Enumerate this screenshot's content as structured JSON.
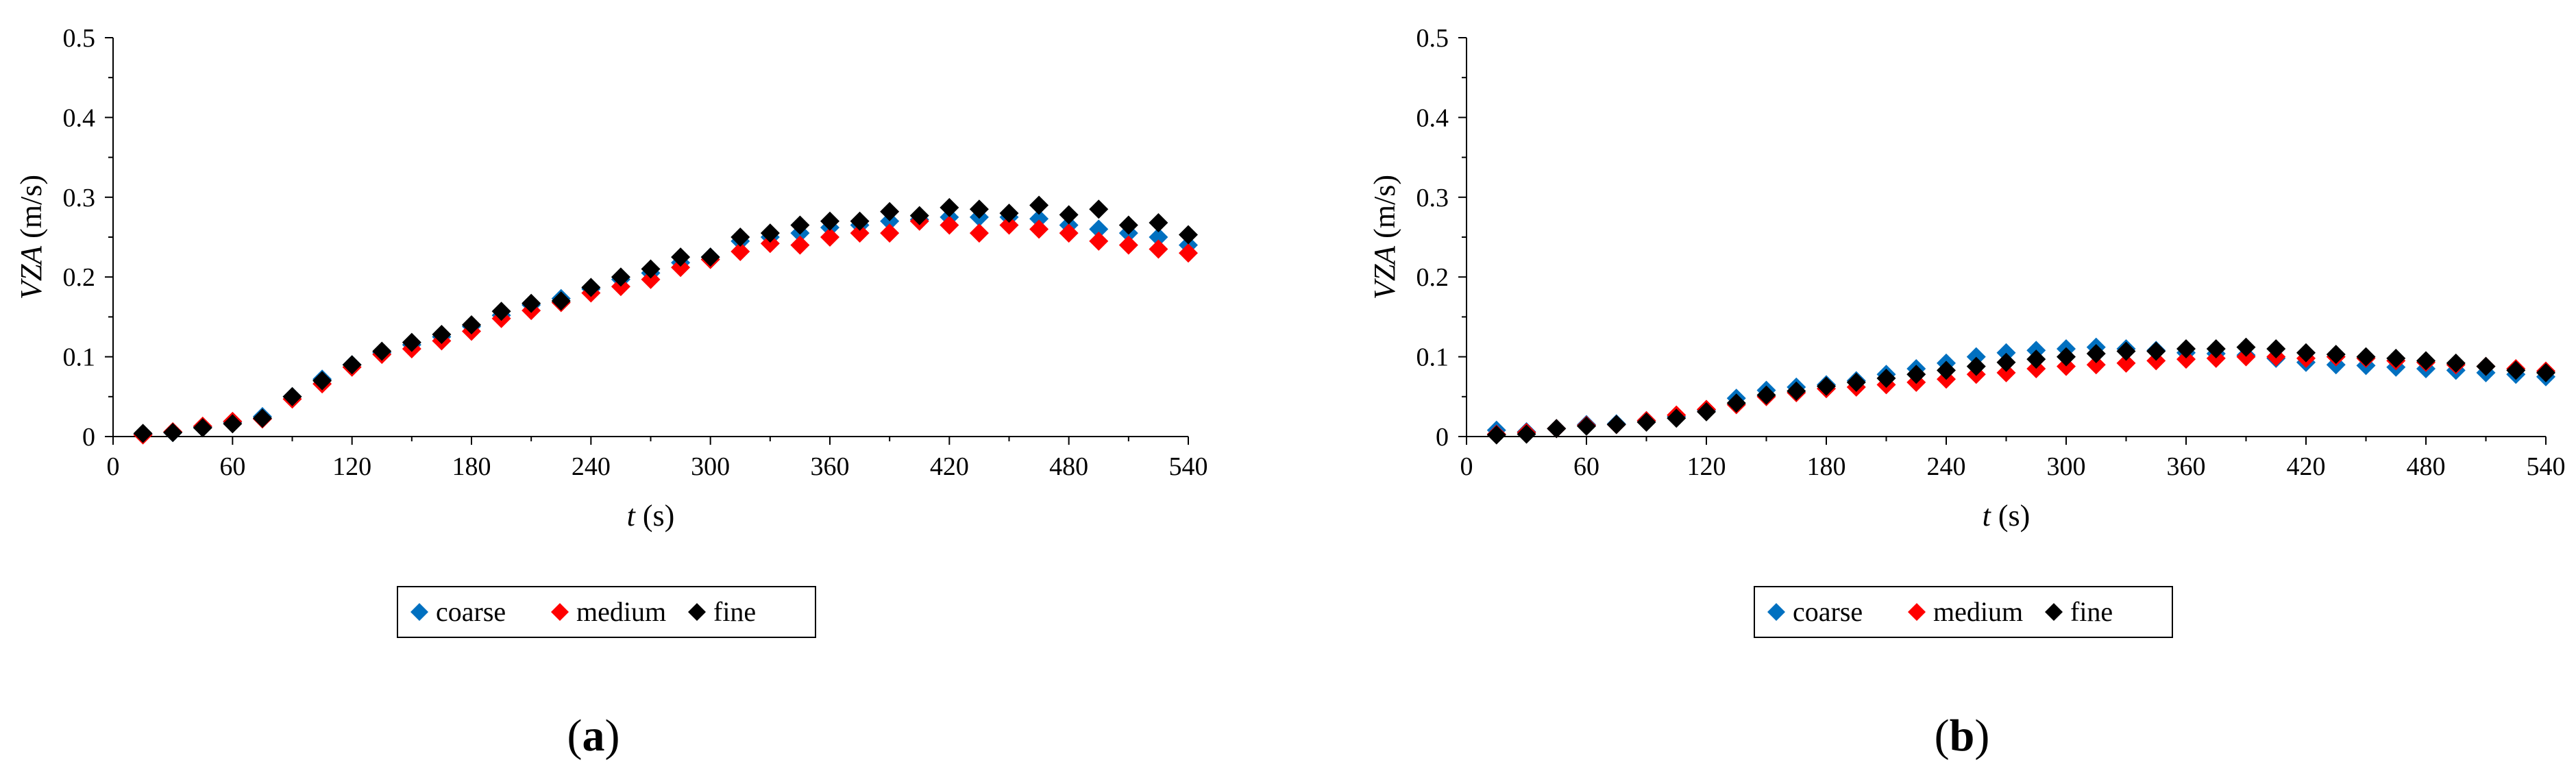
{
  "colors": {
    "coarse": "#0070C0",
    "medium": "#FF0000",
    "fine": "#000000"
  },
  "chart_data": [
    {
      "type": "scatter",
      "panel_label": {
        "open": "(",
        "letter": "a",
        "close": ")"
      },
      "ylabel": {
        "var": "VZA",
        "unit": " (m/s)"
      },
      "xlabel": {
        "var": "t",
        "unit": " (s)"
      },
      "xlim": [
        0,
        540
      ],
      "ylim": [
        0,
        0.5
      ],
      "xticks": [
        0,
        60,
        120,
        180,
        240,
        300,
        360,
        420,
        480,
        540
      ],
      "yticks": [
        0,
        0.1,
        0.2,
        0.3,
        0.4,
        0.5
      ],
      "xtick_labels": [
        "0",
        "60",
        "120",
        "180",
        "240",
        "300",
        "360",
        "420",
        "480",
        "540"
      ],
      "ytick_labels": [
        "0",
        "0.1",
        "0.2",
        "0.3",
        "0.4",
        "0.5"
      ],
      "x": [
        15,
        30,
        45,
        60,
        75,
        90,
        105,
        120,
        135,
        150,
        165,
        180,
        195,
        210,
        225,
        240,
        255,
        270,
        285,
        300,
        315,
        330,
        345,
        360,
        375,
        390,
        405,
        420,
        435,
        450,
        465,
        480,
        495,
        510,
        525,
        540
      ],
      "series": [
        {
          "name": "coarse",
          "values": [
            0.003,
            0.005,
            0.012,
            0.018,
            0.025,
            0.05,
            0.072,
            0.09,
            0.105,
            0.115,
            0.125,
            0.138,
            0.152,
            0.165,
            0.173,
            0.185,
            0.197,
            0.205,
            0.218,
            0.225,
            0.245,
            0.25,
            0.255,
            0.262,
            0.265,
            0.27,
            0.272,
            0.275,
            0.275,
            0.275,
            0.273,
            0.265,
            0.26,
            0.255,
            0.25,
            0.24
          ]
        },
        {
          "name": "medium",
          "values": [
            0.002,
            0.006,
            0.013,
            0.019,
            0.022,
            0.047,
            0.066,
            0.087,
            0.103,
            0.11,
            0.12,
            0.132,
            0.148,
            0.158,
            0.168,
            0.18,
            0.188,
            0.197,
            0.212,
            0.222,
            0.232,
            0.242,
            0.24,
            0.25,
            0.255,
            0.255,
            0.27,
            0.265,
            0.255,
            0.265,
            0.26,
            0.255,
            0.245,
            0.24,
            0.235,
            0.23
          ]
        },
        {
          "name": "fine",
          "values": [
            0.004,
            0.005,
            0.011,
            0.016,
            0.023,
            0.05,
            0.07,
            0.09,
            0.107,
            0.118,
            0.128,
            0.14,
            0.157,
            0.167,
            0.17,
            0.187,
            0.2,
            0.21,
            0.225,
            0.225,
            0.25,
            0.255,
            0.265,
            0.27,
            0.27,
            0.282,
            0.277,
            0.287,
            0.285,
            0.28,
            0.29,
            0.278,
            0.285,
            0.265,
            0.268,
            0.253
          ]
        }
      ],
      "legend": {
        "entries": [
          "coarse",
          "medium",
          "fine"
        ],
        "placement": "bottom-center"
      }
    },
    {
      "type": "scatter",
      "panel_label": {
        "open": "(",
        "letter": "b",
        "close": ")"
      },
      "ylabel": {
        "var": "VZA",
        "unit": " (m/s)"
      },
      "xlabel": {
        "var": "t",
        "unit": " (s)"
      },
      "xlim": [
        0,
        540
      ],
      "ylim": [
        0,
        0.5
      ],
      "xticks": [
        0,
        60,
        120,
        180,
        240,
        300,
        360,
        420,
        480,
        540
      ],
      "yticks": [
        0,
        0.1,
        0.2,
        0.3,
        0.4,
        0.5
      ],
      "xtick_labels": [
        "0",
        "60",
        "120",
        "180",
        "240",
        "300",
        "360",
        "420",
        "480",
        "540"
      ],
      "ytick_labels": [
        "0",
        "0.1",
        "0.2",
        "0.3",
        "0.4",
        "0.5"
      ],
      "x": [
        15,
        30,
        45,
        60,
        75,
        90,
        105,
        120,
        135,
        150,
        165,
        180,
        195,
        210,
        225,
        240,
        255,
        270,
        285,
        300,
        315,
        330,
        345,
        360,
        375,
        390,
        405,
        420,
        435,
        450,
        465,
        480,
        495,
        510,
        525,
        540
      ],
      "series": [
        {
          "name": "coarse",
          "values": [
            0.008,
            0.006,
            0.01,
            0.015,
            0.016,
            0.02,
            0.025,
            0.033,
            0.048,
            0.058,
            0.062,
            0.065,
            0.07,
            0.078,
            0.085,
            0.092,
            0.1,
            0.105,
            0.108,
            0.11,
            0.112,
            0.11,
            0.108,
            0.105,
            0.104,
            0.102,
            0.098,
            0.093,
            0.09,
            0.089,
            0.087,
            0.085,
            0.083,
            0.08,
            0.078,
            0.075
          ]
        },
        {
          "name": "medium",
          "values": [
            0.003,
            0.005,
            0.01,
            0.014,
            0.015,
            0.02,
            0.027,
            0.034,
            0.04,
            0.05,
            0.055,
            0.06,
            0.062,
            0.065,
            0.068,
            0.072,
            0.078,
            0.08,
            0.085,
            0.088,
            0.09,
            0.092,
            0.095,
            0.097,
            0.098,
            0.1,
            0.1,
            0.098,
            0.1,
            0.098,
            0.095,
            0.093,
            0.09,
            0.088,
            0.085,
            0.082
          ]
        },
        {
          "name": "fine",
          "values": [
            0.002,
            0.003,
            0.01,
            0.013,
            0.015,
            0.018,
            0.023,
            0.031,
            0.042,
            0.052,
            0.057,
            0.063,
            0.068,
            0.073,
            0.078,
            0.083,
            0.088,
            0.093,
            0.097,
            0.1,
            0.104,
            0.107,
            0.107,
            0.11,
            0.11,
            0.112,
            0.11,
            0.105,
            0.103,
            0.1,
            0.098,
            0.095,
            0.092,
            0.088,
            0.083,
            0.08
          ]
        }
      ],
      "legend": {
        "entries": [
          "coarse",
          "medium",
          "fine"
        ],
        "placement": "bottom-center"
      }
    }
  ]
}
